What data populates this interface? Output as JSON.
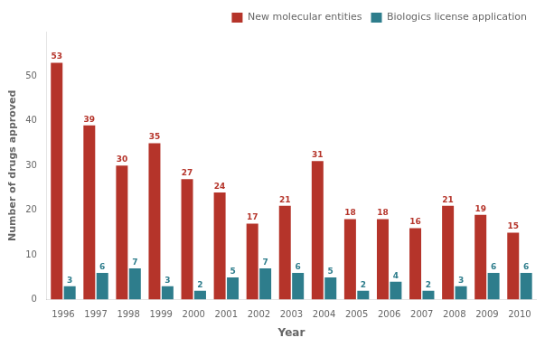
{
  "chart_data": {
    "type": "bar",
    "categories": [
      "1996",
      "1997",
      "1998",
      "1999",
      "2000",
      "2001",
      "2002",
      "2003",
      "2004",
      "2005",
      "2006",
      "2007",
      "2008",
      "2009",
      "2010"
    ],
    "series": [
      {
        "name": "New molecular entities",
        "color": "#b5342a",
        "values": [
          53,
          39,
          30,
          35,
          27,
          24,
          17,
          21,
          31,
          18,
          18,
          16,
          21,
          19,
          15
        ]
      },
      {
        "name": "Biologics license application",
        "color": "#2e7d8c",
        "values": [
          3,
          6,
          7,
          3,
          2,
          5,
          7,
          6,
          5,
          2,
          4,
          2,
          3,
          6,
          6
        ]
      }
    ],
    "x_label": "Year",
    "y_label": "Number of drugs approved",
    "ylim": [
      0,
      60
    ],
    "yticks": [
      0,
      10,
      20,
      30,
      40,
      50
    ],
    "grid": false,
    "legend": "upper right",
    "data_labels": true
  }
}
